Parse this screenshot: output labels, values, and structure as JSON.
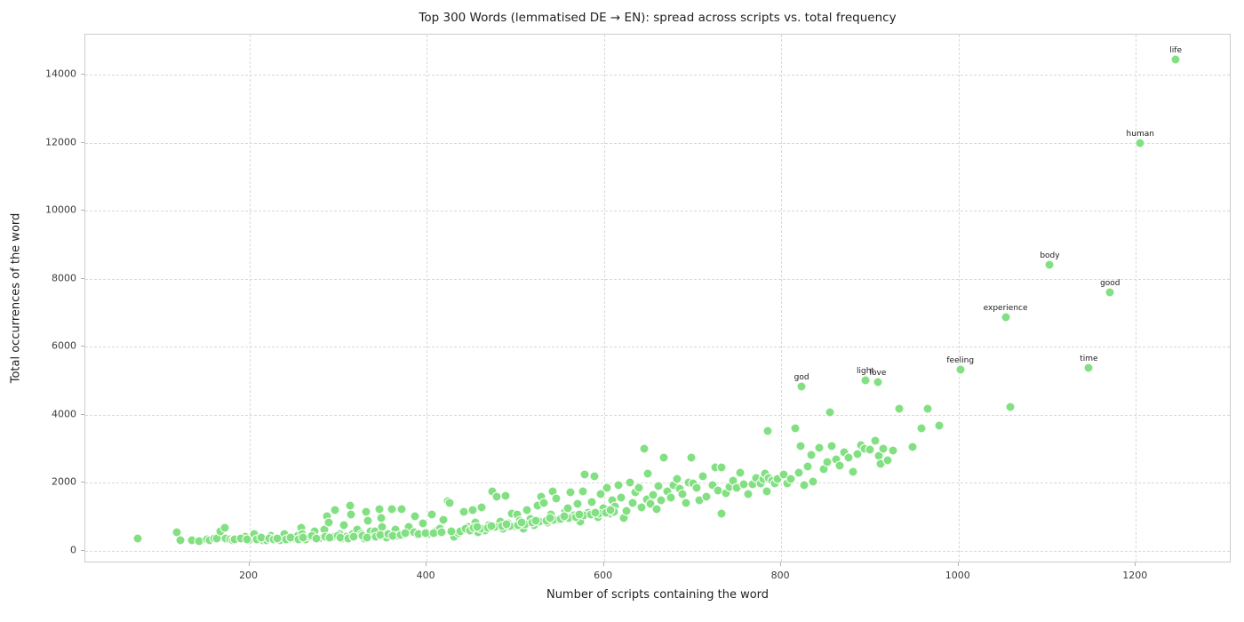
{
  "chart_data": {
    "type": "scatter",
    "title": "Top 300 Words (lemmatised DE → EN): spread across scripts vs. total frequency",
    "xlabel": "Number of scripts containing the word",
    "ylabel": "Total occurrences of the word",
    "xlim": [
      15,
      1308
    ],
    "ylim": [
      -370,
      15180
    ],
    "xticks": [
      200,
      400,
      600,
      800,
      1000,
      1200
    ],
    "yticks": [
      0,
      2000,
      4000,
      6000,
      8000,
      10000,
      12000,
      14000
    ],
    "grid": "dashed",
    "legend": "none",
    "marker_color": "#82e082",
    "marker_edge_color": "#ffffff",
    "grid_color": "#d9d9d9",
    "spine_color": "#cccccc",
    "text_color": "#1f1f1f",
    "labeled_points": [
      {
        "word": "life",
        "x": 1245,
        "y": 14450
      },
      {
        "word": "human",
        "x": 1205,
        "y": 11990
      },
      {
        "word": "body",
        "x": 1103,
        "y": 8410
      },
      {
        "word": "good",
        "x": 1171,
        "y": 7600
      },
      {
        "word": "experience",
        "x": 1053,
        "y": 6870
      },
      {
        "word": "time",
        "x": 1147,
        "y": 5380
      },
      {
        "word": "feeling",
        "x": 1002,
        "y": 5330
      },
      {
        "word": "light",
        "x": 895,
        "y": 5020
      },
      {
        "word": "love",
        "x": 909,
        "y": 4960
      },
      {
        "word": "god",
        "x": 823,
        "y": 4830
      }
    ],
    "points": [
      [
        74,
        350
      ],
      [
        118,
        556
      ],
      [
        122,
        321
      ],
      [
        135,
        300
      ],
      [
        143,
        295
      ],
      [
        152,
        330
      ],
      [
        155,
        321
      ],
      [
        160,
        370
      ],
      [
        163,
        366
      ],
      [
        167,
        583
      ],
      [
        172,
        671
      ],
      [
        173,
        366
      ],
      [
        178,
        330
      ],
      [
        181,
        321
      ],
      [
        188,
        366
      ],
      [
        195,
        420
      ],
      [
        199,
        321
      ],
      [
        205,
        500
      ],
      [
        210,
        347
      ],
      [
        215,
        320
      ],
      [
        219,
        321
      ],
      [
        224,
        430
      ],
      [
        229,
        366
      ],
      [
        235,
        321
      ],
      [
        240,
        480
      ],
      [
        245,
        347
      ],
      [
        252,
        366
      ],
      [
        255,
        430
      ],
      [
        259,
        671
      ],
      [
        260,
        496
      ],
      [
        264,
        330
      ],
      [
        269,
        410
      ],
      [
        274,
        583
      ],
      [
        279,
        366
      ],
      [
        285,
        627
      ],
      [
        288,
        1019
      ],
      [
        290,
        844
      ],
      [
        295,
        410
      ],
      [
        297,
        1194
      ],
      [
        302,
        496
      ],
      [
        305,
        350
      ],
      [
        307,
        758
      ],
      [
        310,
        420
      ],
      [
        314,
        1325
      ],
      [
        315,
        1063
      ],
      [
        317,
        496
      ],
      [
        322,
        627
      ],
      [
        327,
        496
      ],
      [
        330,
        360
      ],
      [
        332,
        1150
      ],
      [
        334,
        888
      ],
      [
        337,
        583
      ],
      [
        342,
        583
      ],
      [
        347,
        1237
      ],
      [
        349,
        975
      ],
      [
        350,
        714
      ],
      [
        355,
        400
      ],
      [
        358,
        500
      ],
      [
        361,
        1236
      ],
      [
        365,
        627
      ],
      [
        368,
        440
      ],
      [
        372,
        1236
      ],
      [
        377,
        550
      ],
      [
        380,
        700
      ],
      [
        387,
        1019
      ],
      [
        390,
        460
      ],
      [
        396,
        802
      ],
      [
        402,
        480
      ],
      [
        406,
        1063
      ],
      [
        410,
        560
      ],
      [
        415,
        640
      ],
      [
        419,
        900
      ],
      [
        424,
        1455
      ],
      [
        426,
        1410
      ],
      [
        431,
        410
      ],
      [
        436,
        520
      ],
      [
        442,
        1150
      ],
      [
        447,
        690
      ],
      [
        452,
        1194
      ],
      [
        455,
        840
      ],
      [
        458,
        550
      ],
      [
        462,
        1280
      ],
      [
        466,
        610
      ],
      [
        470,
        760
      ],
      [
        474,
        1758
      ],
      [
        479,
        1585
      ],
      [
        483,
        870
      ],
      [
        486,
        640
      ],
      [
        489,
        1627
      ],
      [
        492,
        802
      ],
      [
        496,
        1100
      ],
      [
        499,
        720
      ],
      [
        502,
        1063
      ],
      [
        505,
        880
      ],
      [
        509,
        660
      ],
      [
        513,
        1200
      ],
      [
        517,
        940
      ],
      [
        521,
        760
      ],
      [
        525,
        1340
      ],
      [
        529,
        1585
      ],
      [
        532,
        1410
      ],
      [
        536,
        820
      ],
      [
        540,
        1060
      ],
      [
        542,
        1758
      ],
      [
        546,
        1541
      ],
      [
        549,
        900
      ],
      [
        553,
        980
      ],
      [
        556,
        1150
      ],
      [
        559,
        1240
      ],
      [
        562,
        1715
      ],
      [
        566,
        1050
      ],
      [
        570,
        1380
      ],
      [
        573,
        860
      ],
      [
        576,
        1758
      ],
      [
        578,
        2240
      ],
      [
        582,
        1120
      ],
      [
        586,
        1440
      ],
      [
        589,
        2194
      ],
      [
        593,
        990
      ],
      [
        596,
        1672
      ],
      [
        599,
        1260
      ],
      [
        603,
        1846
      ],
      [
        606,
        1100
      ],
      [
        609,
        1497
      ],
      [
        612,
        1300
      ],
      [
        616,
        1933
      ],
      [
        619,
        1560
      ],
      [
        622,
        950
      ],
      [
        625,
        1180
      ],
      [
        629,
        2020
      ],
      [
        632,
        1420
      ],
      [
        635,
        1720
      ],
      [
        639,
        1846
      ],
      [
        642,
        1280
      ],
      [
        645,
        2996
      ],
      [
        648,
        1500
      ],
      [
        649,
        2281
      ],
      [
        652,
        1380
      ],
      [
        655,
        1640
      ],
      [
        659,
        1236
      ],
      [
        662,
        1900
      ],
      [
        665,
        1480
      ],
      [
        668,
        2735
      ],
      [
        672,
        1750
      ],
      [
        676,
        1560
      ],
      [
        679,
        1933
      ],
      [
        683,
        2100
      ],
      [
        686,
        1820
      ],
      [
        689,
        1672
      ],
      [
        693,
        1400
      ],
      [
        696,
        2000
      ],
      [
        699,
        2735
      ],
      [
        701,
        1977
      ],
      [
        705,
        1846
      ],
      [
        708,
        1497
      ],
      [
        712,
        2200
      ],
      [
        716,
        1600
      ],
      [
        723,
        1933
      ],
      [
        726,
        2450
      ],
      [
        729,
        1776
      ],
      [
        733,
        2455
      ],
      [
        733,
        1106
      ],
      [
        738,
        1690
      ],
      [
        742,
        1880
      ],
      [
        746,
        2050
      ],
      [
        750,
        1846
      ],
      [
        754,
        2300
      ],
      [
        758,
        1951
      ],
      [
        763,
        1672
      ],
      [
        768,
        1950
      ],
      [
        772,
        2150
      ],
      [
        777,
        1977
      ],
      [
        780,
        2107
      ],
      [
        782,
        2281
      ],
      [
        784,
        1758
      ],
      [
        785,
        3530
      ],
      [
        786,
        2150
      ],
      [
        790,
        2050
      ],
      [
        793,
        1980
      ],
      [
        796,
        2120
      ],
      [
        803,
        2250
      ],
      [
        807,
        1977
      ],
      [
        811,
        2120
      ],
      [
        816,
        3590
      ],
      [
        820,
        2300
      ],
      [
        822,
        3080
      ],
      [
        826,
        1933
      ],
      [
        830,
        2480
      ],
      [
        834,
        2820
      ],
      [
        836,
        2038
      ],
      [
        843,
        3020
      ],
      [
        848,
        2390
      ],
      [
        852,
        2600
      ],
      [
        855,
        4080
      ],
      [
        857,
        3080
      ],
      [
        862,
        2700
      ],
      [
        866,
        2500
      ],
      [
        871,
        2900
      ],
      [
        876,
        2750
      ],
      [
        881,
        2330
      ],
      [
        886,
        2850
      ],
      [
        890,
        3100
      ],
      [
        894,
        3000
      ],
      [
        900,
        2980
      ],
      [
        906,
        3240
      ],
      [
        910,
        2790
      ],
      [
        912,
        2560
      ],
      [
        915,
        3000
      ],
      [
        920,
        2650
      ],
      [
        926,
        2950
      ],
      [
        933,
        4170
      ],
      [
        948,
        3050
      ],
      [
        958,
        3590
      ],
      [
        965,
        4180
      ],
      [
        978,
        3690
      ],
      [
        1058,
        4230
      ],
      [
        183,
        340
      ],
      [
        190,
        355
      ],
      [
        197,
        335
      ],
      [
        208,
        340
      ],
      [
        213,
        380
      ],
      [
        222,
        360
      ],
      [
        227,
        335
      ],
      [
        232,
        350
      ],
      [
        242,
        340
      ],
      [
        247,
        390
      ],
      [
        256,
        345
      ],
      [
        261,
        380
      ],
      [
        271,
        440
      ],
      [
        276,
        370
      ],
      [
        286,
        420
      ],
      [
        291,
        380
      ],
      [
        300,
        450
      ],
      [
        303,
        395
      ],
      [
        312,
        370
      ],
      [
        318,
        410
      ],
      [
        328,
        440
      ],
      [
        333,
        400
      ],
      [
        343,
        420
      ],
      [
        348,
        455
      ],
      [
        357,
        480
      ],
      [
        362,
        440
      ],
      [
        371,
        460
      ],
      [
        376,
        520
      ],
      [
        386,
        540
      ],
      [
        391,
        490
      ],
      [
        399,
        510
      ],
      [
        408,
        530
      ],
      [
        417,
        545
      ],
      [
        428,
        560
      ],
      [
        438,
        580
      ],
      [
        444,
        660
      ],
      [
        449,
        600
      ],
      [
        453,
        680
      ],
      [
        461,
        650
      ],
      [
        469,
        680
      ],
      [
        477,
        700
      ],
      [
        485,
        720
      ],
      [
        494,
        740
      ],
      [
        503,
        760
      ],
      [
        511,
        790
      ],
      [
        519,
        820
      ],
      [
        527,
        850
      ],
      [
        535,
        880
      ],
      [
        543,
        910
      ],
      [
        551,
        940
      ],
      [
        560,
        970
      ],
      [
        568,
        1000
      ],
      [
        577,
        1030
      ],
      [
        585,
        1060
      ],
      [
        594,
        1090
      ],
      [
        602,
        1120
      ],
      [
        611,
        1150
      ],
      [
        457,
        700
      ],
      [
        473,
        740
      ],
      [
        490,
        780
      ],
      [
        507,
        830
      ],
      [
        523,
        890
      ],
      [
        539,
        950
      ],
      [
        555,
        1010
      ],
      [
        572,
        1070
      ],
      [
        590,
        1130
      ],
      [
        607,
        1190
      ]
    ]
  }
}
